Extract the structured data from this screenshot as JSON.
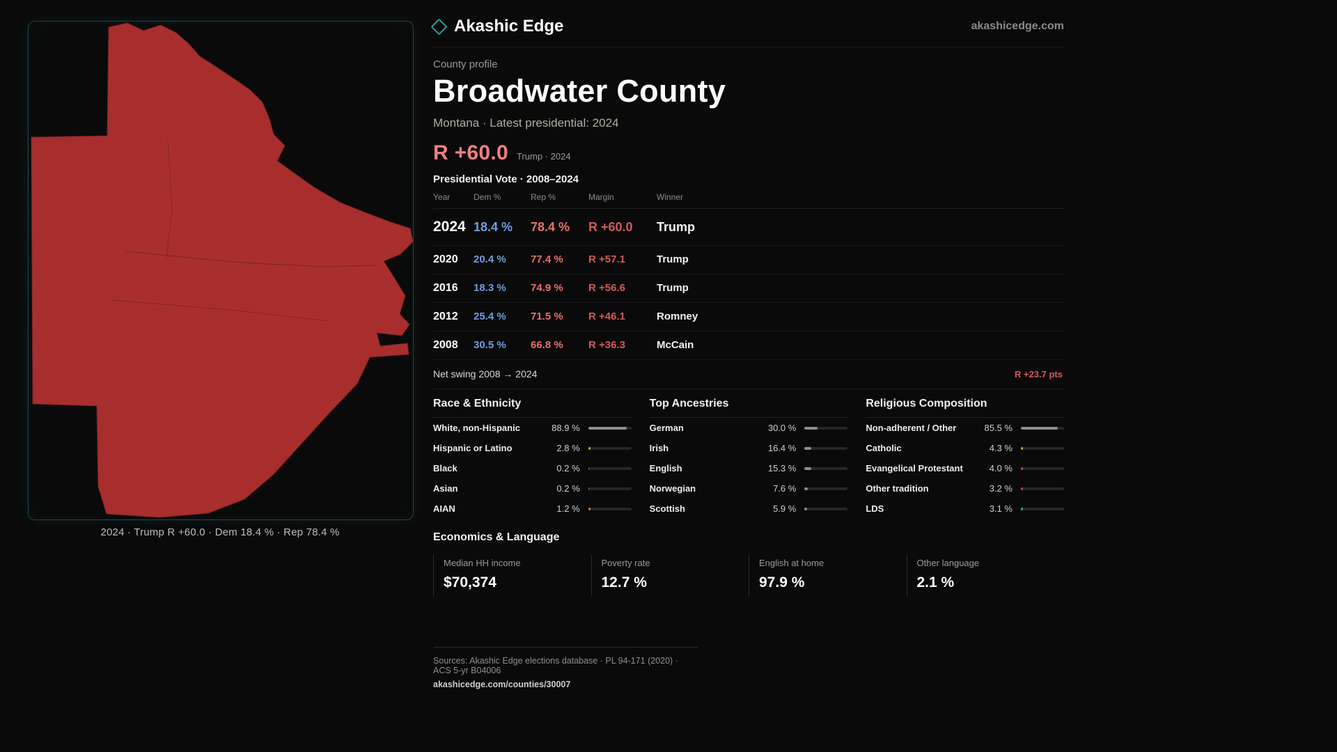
{
  "header": {
    "brand": "Akashic Edge",
    "site": "akashicedge.com"
  },
  "map": {
    "caption": "2024 · Trump R +60.0 · Dem 18.4 % · Rep 78.4 %"
  },
  "profile": {
    "kicker": "County profile",
    "title": "Broadwater County",
    "subtitle": "Montana · Latest presidential: 2024",
    "margin_big": "R +60.0",
    "margin_note": "Trump · 2024"
  },
  "vote_table": {
    "title": "Presidential Vote · 2008–2024",
    "columns": [
      "Year",
      "Dem %",
      "Rep %",
      "Margin",
      "Winner"
    ],
    "rows": [
      {
        "year": "2024",
        "dem": "18.4 %",
        "rep": "78.4 %",
        "margin": "R +60.0",
        "winner": "Trump",
        "highlight": true
      },
      {
        "year": "2020",
        "dem": "20.4 %",
        "rep": "77.4 %",
        "margin": "R +57.1",
        "winner": "Trump",
        "highlight": false
      },
      {
        "year": "2016",
        "dem": "18.3 %",
        "rep": "74.9 %",
        "margin": "R +56.6",
        "winner": "Trump",
        "highlight": false
      },
      {
        "year": "2012",
        "dem": "25.4 %",
        "rep": "71.5 %",
        "margin": "R +46.1",
        "winner": "Romney",
        "highlight": false
      },
      {
        "year": "2008",
        "dem": "30.5 %",
        "rep": "66.8 %",
        "margin": "R +36.3",
        "winner": "McCain",
        "highlight": false
      }
    ],
    "net_swing_label": "Net swing 2008 → 2024",
    "net_swing_value": "R +23.7 pts"
  },
  "demographics": [
    {
      "title": "Race & Ethnicity",
      "rows": [
        {
          "label": "White, non-Hispanic",
          "value": "88.9 %",
          "pct": 88.9,
          "color": "#8a8f93"
        },
        {
          "label": "Hispanic or Latino",
          "value": "2.8 %",
          "pct": 2.8,
          "color": "#d9a441"
        },
        {
          "label": "Black",
          "value": "0.2 %",
          "pct": 0.2,
          "color": "#8a8f93"
        },
        {
          "label": "Asian",
          "value": "0.2 %",
          "pct": 0.2,
          "color": "#8a8f93"
        },
        {
          "label": "AIAN",
          "value": "1.2 %",
          "pct": 1.2,
          "color": "#d07b3a"
        }
      ]
    },
    {
      "title": "Top Ancestries",
      "rows": [
        {
          "label": "German",
          "value": "30.0 %",
          "pct": 30.0,
          "color": "#8a8f93"
        },
        {
          "label": "Irish",
          "value": "16.4 %",
          "pct": 16.4,
          "color": "#8a8f93"
        },
        {
          "label": "English",
          "value": "15.3 %",
          "pct": 15.3,
          "color": "#8a8f93"
        },
        {
          "label": "Norwegian",
          "value": "7.6 %",
          "pct": 7.6,
          "color": "#8a8f93"
        },
        {
          "label": "Scottish",
          "value": "5.9 %",
          "pct": 5.9,
          "color": "#8a8f93"
        }
      ]
    },
    {
      "title": "Religious Composition",
      "rows": [
        {
          "label": "Non-adherent / Other",
          "value": "85.5 %",
          "pct": 85.5,
          "color": "#8a8f93"
        },
        {
          "label": "Catholic",
          "value": "4.3 %",
          "pct": 4.3,
          "color": "#d9a441"
        },
        {
          "label": "Evangelical Protestant",
          "value": "4.0 %",
          "pct": 4.0,
          "color": "#c04545"
        },
        {
          "label": "Other tradition",
          "value": "3.2 %",
          "pct": 3.2,
          "color": "#c04545"
        },
        {
          "label": "LDS",
          "value": "3.1 %",
          "pct": 3.1,
          "color": "#3aa6a0"
        }
      ]
    }
  ],
  "economics": {
    "title": "Economics & Language",
    "stats": [
      {
        "label": "Median HH income",
        "value": "$70,374"
      },
      {
        "label": "Poverty rate",
        "value": "12.7 %"
      },
      {
        "label": "English at home",
        "value": "97.9 %"
      },
      {
        "label": "Other language",
        "value": "2.1 %"
      }
    ]
  },
  "footer": {
    "sources": "Sources: Akashic Edge elections database · PL 94-171 (2020) · ACS 5-yr B04006",
    "permalink": "akashicedge.com/counties/30007"
  },
  "colors": {
    "page_bg": "#0a0a0a",
    "map_fill": "#a82e2e",
    "map_stroke": "#7d1f1f",
    "frame_border": "#1e4a4a",
    "dem": "#6f9ddf",
    "rep": "#e4726d",
    "margin": "#d45a5a",
    "accent_red": "#f08080",
    "accent_teal": "#2d9d9d"
  }
}
